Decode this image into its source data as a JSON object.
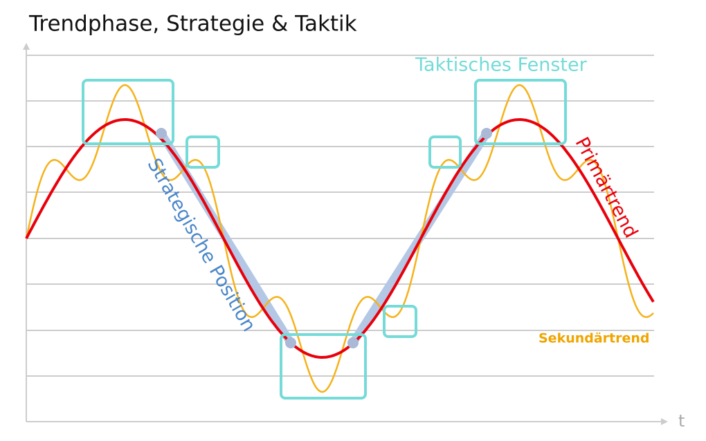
{
  "title": "Trendphase, Strategie & Taktik",
  "labels": {
    "tactical_window": "Taktisches Fenster",
    "strategic_position": "Strategische Position",
    "primary_trend": "Primärtrend",
    "secondary_trend": "Sekundärtrend",
    "time_axis": "t"
  }
}
